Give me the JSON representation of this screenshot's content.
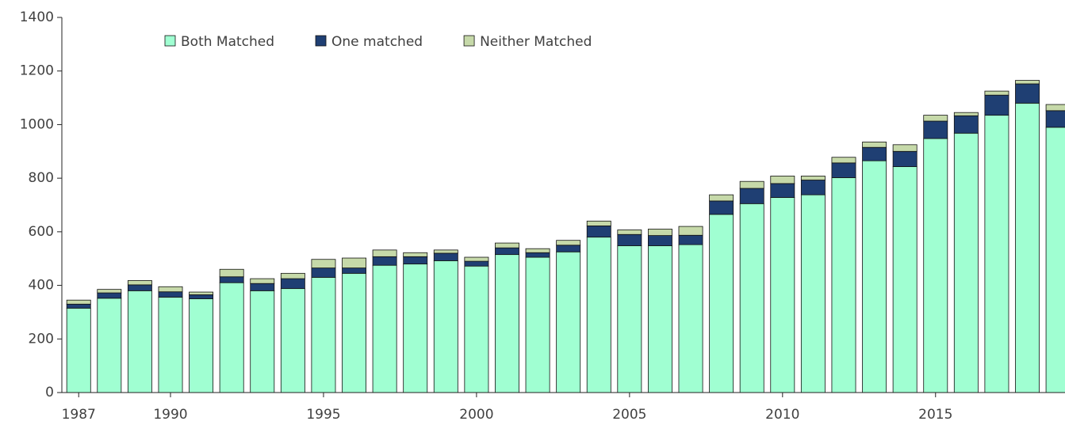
{
  "chart_data": {
    "type": "stacked_bar",
    "x": [
      1987,
      1988,
      1989,
      1990,
      1991,
      1992,
      1993,
      1994,
      1995,
      1996,
      1997,
      1998,
      1999,
      2000,
      2001,
      2002,
      2003,
      2004,
      2005,
      2006,
      2007,
      2008,
      2009,
      2010,
      2011,
      2012,
      2013,
      2014,
      2015,
      2016,
      2017,
      2018,
      2019
    ],
    "series": [
      {
        "name": "Both Matched",
        "color": "#a0ffd2",
        "values": [
          315,
          352,
          380,
          356,
          350,
          410,
          380,
          388,
          430,
          445,
          475,
          480,
          492,
          472,
          515,
          505,
          525,
          580,
          548,
          548,
          552,
          665,
          705,
          728,
          738,
          802,
          865,
          843,
          948,
          968,
          1035,
          1080,
          990
        ]
      },
      {
        "name": "One matched",
        "color": "#1f3f73",
        "values": [
          15,
          20,
          22,
          20,
          15,
          22,
          27,
          37,
          35,
          20,
          32,
          27,
          28,
          18,
          25,
          17,
          25,
          42,
          42,
          38,
          35,
          50,
          57,
          52,
          55,
          55,
          50,
          57,
          65,
          65,
          75,
          72,
          62
        ]
      },
      {
        "name": "Neither Matched",
        "color": "#c6d9a9",
        "values": [
          15,
          13,
          16,
          19,
          10,
          28,
          18,
          20,
          32,
          37,
          25,
          15,
          12,
          15,
          18,
          15,
          18,
          18,
          17,
          24,
          33,
          23,
          26,
          28,
          15,
          21,
          20,
          25,
          22,
          12,
          15,
          13,
          23
        ]
      }
    ],
    "xlim": [
      1986.45,
      2019.23
    ],
    "xticks": [
      1987,
      1990,
      1995,
      2000,
      2005,
      2010,
      2015
    ],
    "ylim": [
      0,
      1400
    ],
    "yticks": [
      0,
      200,
      400,
      600,
      800,
      1000,
      1200,
      1400
    ],
    "legend": "top-left",
    "grid": false
  }
}
